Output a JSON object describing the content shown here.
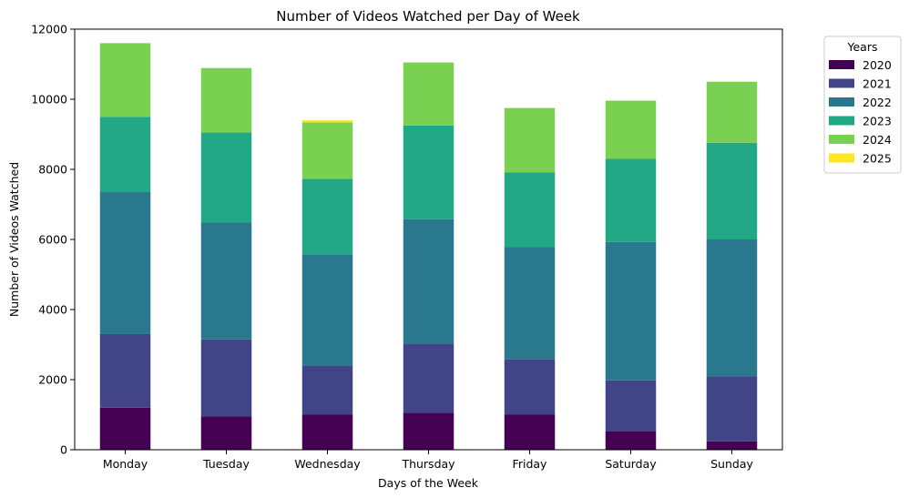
{
  "chart_data": {
    "type": "bar",
    "stacked": true,
    "title": "Number of Videos Watched per Day of Week",
    "xlabel": "Days of the Week",
    "ylabel": "Number of Videos Watched",
    "ylim": [
      0,
      12000
    ],
    "yticks": [
      0,
      2000,
      4000,
      6000,
      8000,
      10000,
      12000
    ],
    "categories": [
      "Monday",
      "Tuesday",
      "Wednesday",
      "Thursday",
      "Friday",
      "Saturday",
      "Sunday"
    ],
    "legend": {
      "title": "Years",
      "placement": "outside-top-right"
    },
    "grid": false,
    "series": [
      {
        "name": "2020",
        "color": "#440154",
        "values": [
          1200,
          950,
          1000,
          1050,
          1000,
          530,
          240
        ]
      },
      {
        "name": "2021",
        "color": "#414487",
        "values": [
          2100,
          2200,
          1400,
          1980,
          1580,
          1450,
          1860
        ]
      },
      {
        "name": "2022",
        "color": "#2a788e",
        "values": [
          4050,
          3330,
          3180,
          3550,
          3200,
          3950,
          3900
        ]
      },
      {
        "name": "2023",
        "color": "#22a884",
        "values": [
          2150,
          2570,
          2150,
          2670,
          2130,
          2370,
          2760
        ]
      },
      {
        "name": "2024",
        "color": "#7ad151",
        "values": [
          2100,
          1840,
          1610,
          1800,
          1840,
          1660,
          1740
        ]
      },
      {
        "name": "2025",
        "color": "#fde725",
        "values": [
          0,
          0,
          60,
          0,
          0,
          0,
          0
        ]
      }
    ]
  }
}
